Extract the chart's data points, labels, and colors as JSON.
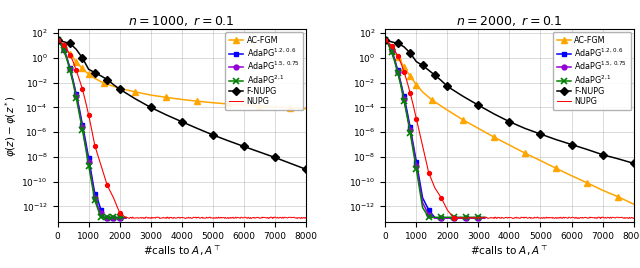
{
  "titles": [
    "$n = 1000,\\ r = 0.1$",
    "$n = 2000,\\ r = 0.1$"
  ],
  "xlabel": "#calls to $A, A^\\top$",
  "ylabel": "$\\varphi(z) - \\varphi(z^*)$",
  "xlim": [
    0,
    8000
  ],
  "xticks": [
    0,
    1000,
    2000,
    3000,
    4000,
    5000,
    6000,
    7000,
    8000
  ],
  "plot1": {
    "AC-FGM": {
      "x": [
        0,
        100,
        200,
        300,
        400,
        500,
        600,
        700,
        800,
        900,
        1000,
        1200,
        1500,
        2000,
        2500,
        3000,
        3500,
        4000,
        4500,
        5000,
        5500,
        6000,
        6500,
        7000,
        7500,
        8000
      ],
      "y": [
        30,
        20,
        9,
        4,
        2,
        1.0,
        0.5,
        0.25,
        0.14,
        0.08,
        0.05,
        0.022,
        0.009,
        0.0035,
        0.0018,
        0.001,
        0.00065,
        0.00044,
        0.00032,
        0.00024,
        0.00019,
        0.000155,
        0.000128,
        0.000108,
        9.2e-05,
        8e-05
      ]
    },
    "AdaPG1": {
      "x": [
        0,
        100,
        200,
        300,
        400,
        500,
        600,
        700,
        800,
        900,
        1000,
        1100,
        1200,
        1300,
        1400,
        1500,
        1600,
        1700,
        1800,
        1900,
        2000,
        2200
      ],
      "y": [
        30,
        15,
        5,
        1.0,
        0.15,
        0.015,
        0.0012,
        8e-05,
        4e-06,
        2e-07,
        8e-09,
        3e-10,
        1e-11,
        3e-12,
        5e-13,
        1.2e-13,
        1.2e-13,
        1.2e-13,
        1.2e-13,
        1.2e-13,
        1.2e-13,
        1.2e-13
      ]
    },
    "AdaPG2": {
      "x": [
        0,
        100,
        200,
        300,
        400,
        500,
        600,
        700,
        800,
        900,
        1000,
        1100,
        1200,
        1300,
        1400,
        1500,
        1600,
        1700,
        1800,
        1900,
        2000,
        2200
      ],
      "y": [
        30,
        14,
        4.5,
        0.9,
        0.12,
        0.012,
        0.0009,
        5e-05,
        2.5e-06,
        1e-07,
        4e-09,
        1.5e-10,
        5e-12,
        1e-12,
        3e-13,
        1.1e-13,
        1.1e-13,
        1.1e-13,
        1.1e-13,
        1.1e-13,
        1.1e-13,
        1.1e-13
      ]
    },
    "AdaPG3": {
      "x": [
        0,
        100,
        200,
        300,
        400,
        500,
        600,
        700,
        800,
        900,
        1000,
        1100,
        1200,
        1300,
        1400,
        1500,
        1600,
        1700,
        1800,
        1900,
        2000,
        2200
      ],
      "y": [
        30,
        13,
        4.0,
        0.8,
        0.1,
        0.009,
        0.0006,
        3e-05,
        1.5e-06,
        6e-08,
        2e-09,
        8e-11,
        3e-12,
        6e-13,
        1.3e-13,
        1.3e-13,
        1.3e-13,
        1.3e-13,
        1.3e-13,
        1.3e-13,
        1.3e-13,
        1.3e-13
      ]
    },
    "F-NUPG": {
      "x": [
        0,
        200,
        400,
        600,
        800,
        1000,
        1200,
        1400,
        1600,
        1800,
        2000,
        2500,
        3000,
        3500,
        4000,
        4500,
        5000,
        5500,
        6000,
        6500,
        7000,
        7500,
        8000
      ],
      "y": [
        30,
        20,
        15,
        5,
        1.0,
        0.12,
        0.065,
        0.035,
        0.018,
        0.007,
        0.003,
        0.0005,
        0.0001,
        2.5e-05,
        7e-06,
        2e-06,
        6e-07,
        2e-07,
        7e-08,
        2.5e-08,
        9e-09,
        3e-09,
        1e-09
      ]
    },
    "NUPG": {
      "x": [
        0,
        100,
        200,
        300,
        400,
        500,
        600,
        700,
        800,
        900,
        1000,
        1100,
        1200,
        1400,
        1600,
        1800,
        2000,
        2200,
        2500,
        2800,
        3000,
        4000,
        5000,
        6000,
        7000,
        8000
      ],
      "y": [
        30,
        20,
        12,
        5,
        1.8,
        0.5,
        0.1,
        0.018,
        0.003,
        0.0003,
        2.5e-05,
        1.5e-06,
        8e-08,
        2e-09,
        5e-11,
        5e-12,
        3e-13,
        1.2e-13,
        1.2e-13,
        1.2e-13,
        1.2e-13,
        1.2e-13,
        1.2e-13,
        1.2e-13,
        1.2e-13,
        1.2e-13
      ]
    }
  },
  "plot2": {
    "AC-FGM": {
      "x": [
        0,
        100,
        200,
        300,
        400,
        500,
        600,
        700,
        800,
        900,
        1000,
        1200,
        1500,
        2000,
        2500,
        3000,
        3500,
        4000,
        4500,
        5000,
        5500,
        6000,
        6500,
        7000,
        7500,
        8000
      ],
      "y": [
        30,
        18,
        8,
        3,
        1.2,
        0.5,
        0.2,
        0.08,
        0.035,
        0.015,
        0.007,
        0.0018,
        0.0004,
        6e-05,
        1e-05,
        2e-06,
        4e-07,
        9e-08,
        2e-08,
        5e-09,
        1.2e-09,
        3e-10,
        8e-11,
        2e-11,
        6e-12,
        1.5e-12
      ]
    },
    "AdaPG1": {
      "x": [
        0,
        100,
        200,
        300,
        400,
        500,
        600,
        700,
        800,
        900,
        1000,
        1200,
        1400,
        1600,
        1800,
        2000,
        2200,
        2400,
        2600,
        2800,
        3000,
        3200
      ],
      "y": [
        30,
        14,
        4,
        0.8,
        0.1,
        0.01,
        0.0008,
        5e-05,
        2.5e-06,
        1e-07,
        4e-09,
        5e-12,
        5e-13,
        1.2e-13,
        1.2e-13,
        1.2e-13,
        1.2e-13,
        1.2e-13,
        1.2e-13,
        1.2e-13,
        1.2e-13,
        1.2e-13
      ]
    },
    "AdaPG2": {
      "x": [
        0,
        100,
        200,
        300,
        400,
        500,
        600,
        700,
        800,
        900,
        1000,
        1200,
        1400,
        1600,
        1800,
        2000,
        2200,
        2400,
        2600,
        2800,
        3000,
        3200
      ],
      "y": [
        30,
        13,
        3.5,
        0.65,
        0.08,
        0.008,
        0.0005,
        3e-05,
        1.5e-06,
        6e-08,
        2e-09,
        2e-12,
        2e-13,
        1.1e-13,
        1.1e-13,
        1.1e-13,
        1.1e-13,
        1.1e-13,
        1.1e-13,
        1.1e-13,
        1.1e-13,
        1.1e-13
      ]
    },
    "AdaPG3": {
      "x": [
        0,
        100,
        200,
        300,
        400,
        500,
        600,
        700,
        800,
        900,
        1000,
        1200,
        1400,
        1600,
        1800,
        2000,
        2200,
        2400,
        2600,
        2800,
        3000,
        3200
      ],
      "y": [
        30,
        12,
        3.0,
        0.55,
        0.06,
        0.006,
        0.00035,
        2e-05,
        9e-07,
        3e-08,
        1e-09,
        8e-13,
        1.3e-13,
        1.3e-13,
        1.3e-13,
        1.3e-13,
        1.3e-13,
        1.3e-13,
        1.3e-13,
        1.3e-13,
        1.3e-13,
        1.3e-13
      ]
    },
    "F-NUPG": {
      "x": [
        0,
        200,
        400,
        600,
        800,
        1000,
        1200,
        1400,
        1600,
        1800,
        2000,
        2500,
        3000,
        3500,
        4000,
        4500,
        5000,
        5500,
        6000,
        6500,
        7000,
        7500,
        8000
      ],
      "y": [
        30,
        20,
        15,
        8,
        2.5,
        0.5,
        0.25,
        0.1,
        0.04,
        0.015,
        0.005,
        0.0008,
        0.00015,
        3e-05,
        7e-06,
        2e-06,
        7e-07,
        2.5e-07,
        1e-07,
        4e-08,
        1.5e-08,
        7e-09,
        3e-09
      ]
    },
    "NUPG": {
      "x": [
        0,
        100,
        200,
        300,
        400,
        500,
        600,
        700,
        800,
        900,
        1000,
        1200,
        1400,
        1600,
        1800,
        2000,
        2200,
        2500,
        3000,
        3500,
        4000,
        4500,
        5000,
        5500,
        6000,
        6500,
        7000,
        7500,
        8000
      ],
      "y": [
        30,
        18,
        10,
        4,
        1.5,
        0.4,
        0.08,
        0.012,
        0.0015,
        0.00015,
        1.2e-05,
        8e-08,
        5e-10,
        3e-11,
        5e-12,
        5e-13,
        1.2e-13,
        1.2e-13,
        1.2e-13,
        1.2e-13,
        1.2e-13,
        1.2e-13,
        1.2e-13,
        1.2e-13,
        1.2e-13,
        1.2e-13,
        1.2e-13,
        1.2e-13,
        1.2e-13
      ]
    }
  }
}
